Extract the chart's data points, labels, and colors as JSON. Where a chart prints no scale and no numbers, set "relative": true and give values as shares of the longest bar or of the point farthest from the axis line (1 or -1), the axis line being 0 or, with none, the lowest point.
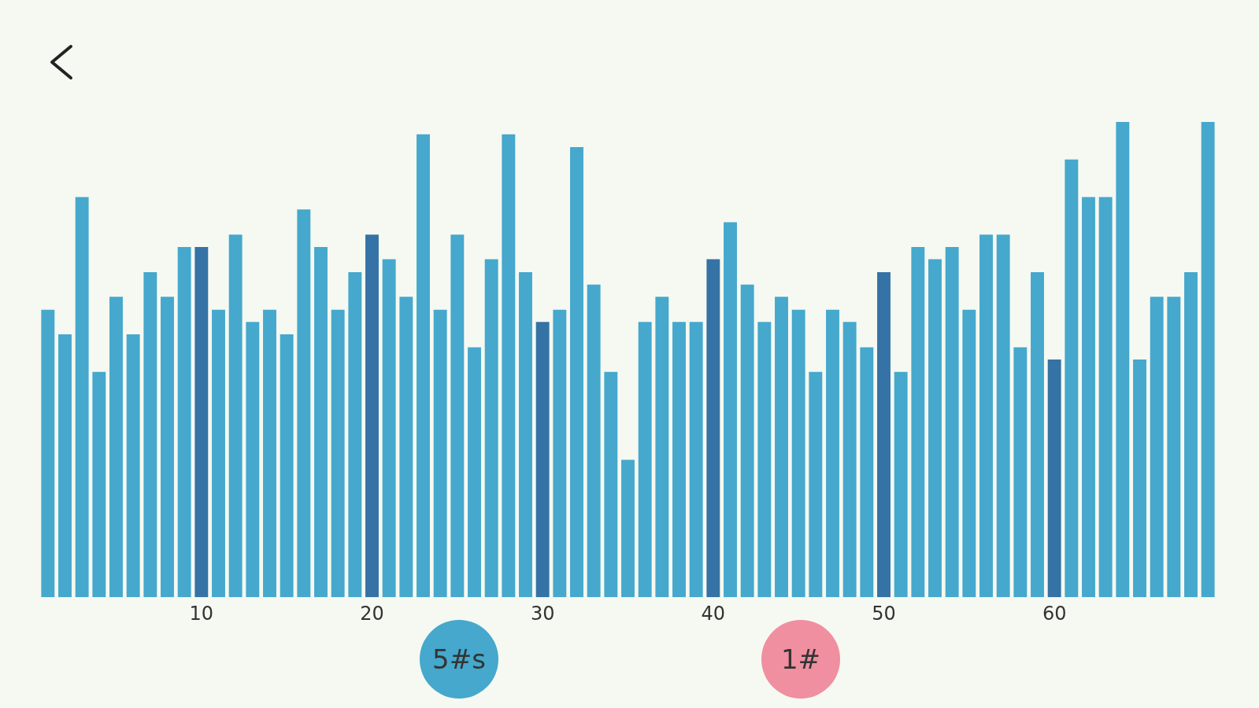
{
  "chart_data": {
    "type": "bar",
    "relative": true,
    "grid": false,
    "legend": false,
    "categories": [
      null,
      null,
      null,
      null,
      null,
      null,
      null,
      null,
      null,
      "10",
      null,
      null,
      null,
      null,
      null,
      null,
      null,
      null,
      null,
      "20",
      null,
      null,
      null,
      null,
      null,
      null,
      null,
      null,
      null,
      "30",
      null,
      null,
      null,
      null,
      null,
      null,
      null,
      null,
      null,
      "40",
      null,
      null,
      null,
      null,
      null,
      null,
      null,
      null,
      null,
      "50",
      null,
      null,
      null,
      null,
      null,
      null,
      null,
      null,
      null,
      "60",
      null,
      null,
      null,
      null,
      null,
      null,
      null,
      null,
      null
    ],
    "values": [
      0.605,
      0.553,
      0.842,
      0.474,
      0.632,
      0.553,
      0.684,
      0.632,
      0.737,
      0.737,
      0.605,
      0.763,
      0.579,
      0.605,
      0.553,
      0.816,
      0.737,
      0.605,
      0.684,
      0.763,
      0.711,
      0.632,
      0.974,
      0.605,
      0.763,
      0.526,
      0.711,
      0.974,
      0.684,
      0.579,
      0.605,
      0.947,
      0.658,
      0.474,
      0.289,
      0.579,
      0.632,
      0.579,
      0.579,
      0.711,
      0.789,
      0.658,
      0.579,
      0.632,
      0.605,
      0.474,
      0.605,
      0.579,
      0.526,
      0.684,
      0.474,
      0.737,
      0.711,
      0.737,
      0.605,
      0.763,
      0.763,
      0.526,
      0.684,
      0.5,
      0.921,
      0.842,
      0.842,
      1,
      0.5,
      0.632,
      0.632,
      0.684,
      1
    ],
    "colors": [
      "#45a8cc",
      "#45a8cc",
      "#45a8cc",
      "#45a8cc",
      "#45a8cc",
      "#45a8cc",
      "#45a8cc",
      "#45a8cc",
      "#45a8cc",
      "#3572a5",
      "#45a8cc",
      "#45a8cc",
      "#45a8cc",
      "#45a8cc",
      "#45a8cc",
      "#45a8cc",
      "#45a8cc",
      "#45a8cc",
      "#45a8cc",
      "#3572a5",
      "#45a8cc",
      "#45a8cc",
      "#45a8cc",
      "#45a8cc",
      "#45a8cc",
      "#45a8cc",
      "#45a8cc",
      "#45a8cc",
      "#45a8cc",
      "#3572a5",
      "#45a8cc",
      "#45a8cc",
      "#45a8cc",
      "#45a8cc",
      "#45a8cc",
      "#45a8cc",
      "#45a8cc",
      "#45a8cc",
      "#45a8cc",
      "#3572a5",
      "#45a8cc",
      "#45a8cc",
      "#45a8cc",
      "#45a8cc",
      "#45a8cc",
      "#45a8cc",
      "#45a8cc",
      "#45a8cc",
      "#45a8cc",
      "#3572a5",
      "#45a8cc",
      "#45a8cc",
      "#45a8cc",
      "#45a8cc",
      "#45a8cc",
      "#45a8cc",
      "#45a8cc",
      "#45a8cc",
      "#45a8cc",
      "#3572a5",
      "#45a8cc",
      "#45a8cc",
      "#45a8cc",
      "#45a8cc",
      "#45a8cc",
      "#45a8cc",
      "#45a8cc",
      "#45a8cc",
      "#45a8cc"
    ],
    "annotations": [
      "5#s",
      "1#"
    ]
  }
}
